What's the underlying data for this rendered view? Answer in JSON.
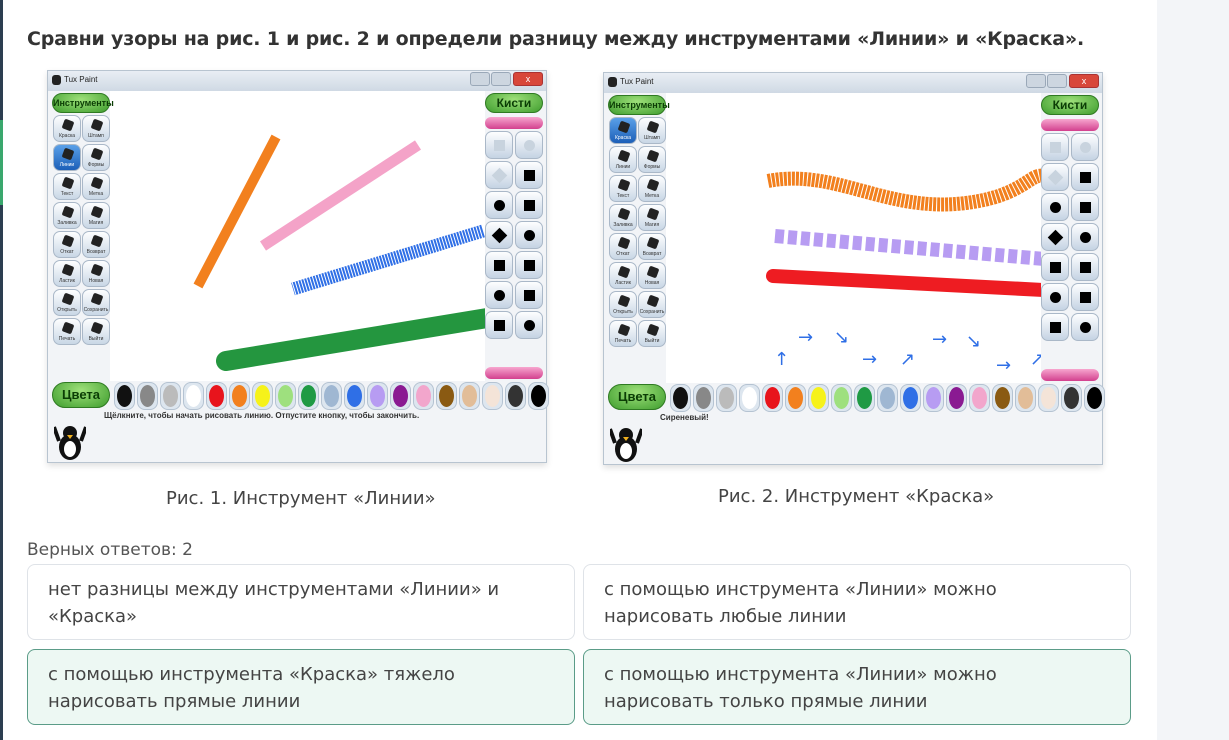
{
  "question": "Сравни узоры на рис. 1 и рис. 2 и определи разницу между инструментами «Линии» и «Краска».",
  "figures": [
    {
      "window_title": "Tux Paint",
      "tools_header": "Инструменты",
      "brushes_header": "Кисти",
      "colors_label": "Цвета",
      "selected_tool": "Линии",
      "status": "Щёлкните, чтобы начать рисовать линию. Отпустите кнопку, чтобы закончить.",
      "caption": "Рис. 1. Инструмент «Линии»",
      "strokes": [
        "orange",
        "pink",
        "blue",
        "green"
      ]
    },
    {
      "window_title": "Tux Paint",
      "tools_header": "Инструменты",
      "brushes_header": "Кисти",
      "colors_label": "Цвета",
      "selected_tool": "Краска",
      "status": "Сиреневый!",
      "caption": "Рис. 2. Инструмент «Краска»",
      "strokes": [
        "orange-wave",
        "lilac-spray",
        "red",
        "blue-arrows"
      ]
    }
  ],
  "tools": [
    "Краска",
    "Штамп",
    "Линии",
    "Формы",
    "Текст",
    "Метка",
    "Заливка",
    "Магия",
    "Откат",
    "Возврат",
    "Ластик",
    "Новая",
    "Открыть",
    "Сохранить",
    "Печать",
    "Выйти"
  ],
  "palette": [
    "#111111",
    "#888888",
    "#bbbbbb",
    "#ffffff",
    "#e8141c",
    "#f2801e",
    "#f6f21a",
    "#9ee07e",
    "#1f9a44",
    "#9fb7d2",
    "#2f6fe6",
    "#b79cf2",
    "#8a1a92",
    "#f2a6cc",
    "#8a5a12",
    "#e2bd98",
    "#f4e4d8",
    "#333333",
    "#000000"
  ],
  "correct_count_label": "Верных ответов: 2",
  "answers": [
    {
      "text": "нет разницы между инструментами «Линии» и «Краска»",
      "selected": false
    },
    {
      "text": "с помощью инструмента «Линии» можно нарисовать любые линии",
      "selected": false
    },
    {
      "text": "с помощью инструмента «Краска» тяжело нарисовать прямые линии",
      "selected": true
    },
    {
      "text": "с помощью инструмента «Линии» можно нарисовать только прямые линии",
      "selected": true
    }
  ],
  "colors": {
    "selected_bg": "#edf8f3",
    "selected_border": "#5b9c88"
  }
}
